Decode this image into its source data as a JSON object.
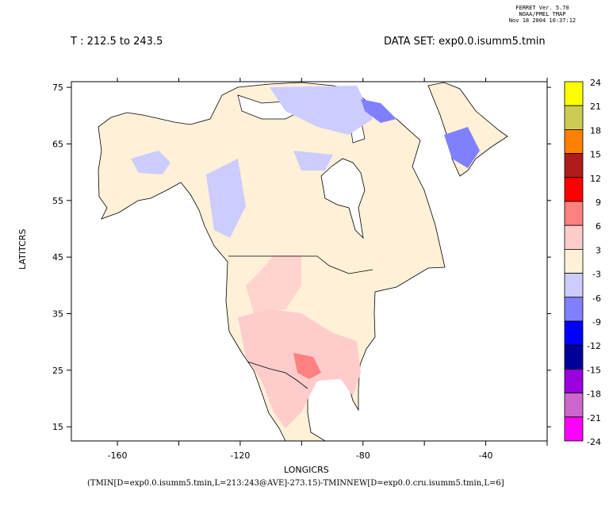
{
  "stamp": {
    "line1": "FERRET Ver. 5.70",
    "line2": "NOAA/PMEL TMAP",
    "line3": "Nov 18 2004 10:37:12"
  },
  "header": {
    "time_range": "T : 212.5 to 243.5",
    "dataset": "DATA SET: exp0.0.isumm5.tmin"
  },
  "chart_data": {
    "type": "heatmap",
    "title": "(TMIN[D=exp0.0.isumm5.tmin,L=213:243@AVE]-273.15)-TMINNEW[D=exp0.0.cru.isumm5.tmin,L=6]",
    "xlabel": "LONGICRS",
    "ylabel": "LATITCRS",
    "xlim": [
      -175,
      -20
    ],
    "ylim": [
      12.5,
      76
    ],
    "x_ticks": [
      -160,
      -140,
      -120,
      -100,
      -80,
      -60,
      -40,
      -20
    ],
    "x_tick_labels": [
      "-160",
      "",
      "-120",
      "",
      "-80",
      "",
      "-40",
      ""
    ],
    "y_ticks": [
      75,
      65,
      55,
      45,
      35,
      25,
      15
    ],
    "y_tick_labels": [
      "75",
      "65",
      "55",
      "45",
      "35",
      "25",
      "15"
    ],
    "colorbar": {
      "levels": [
        "24",
        "21",
        "18",
        "15",
        "12",
        "9",
        "6",
        "3",
        "-3",
        "-6",
        "-9",
        "-12",
        "-15",
        "-18",
        "-21",
        "-24"
      ],
      "colors": [
        "#ffff00",
        "#cccc55",
        "#ff8000",
        "#b01c1c",
        "#ff0000",
        "#ff8080",
        "#ffcccc",
        "#fff0d8",
        "#ccccff",
        "#8080ff",
        "#0000ff",
        "#000099",
        "#9900dd",
        "#cc66cc",
        "#ff00ff"
      ]
    }
  }
}
